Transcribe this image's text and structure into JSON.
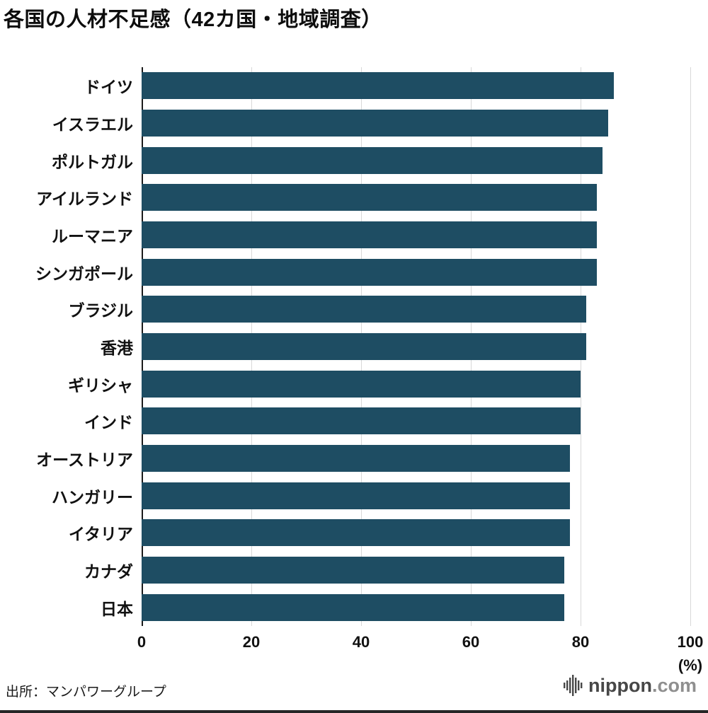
{
  "chart_data": {
    "type": "bar",
    "orientation": "horizontal",
    "title": "各国の人材不足感（42カ国・地域調査）",
    "categories": [
      "ドイツ",
      "イスラエル",
      "ポルトガル",
      "アイルランド",
      "ルーマニア",
      "シンガポール",
      "ブラジル",
      "香港",
      "ギリシャ",
      "インド",
      "オーストリア",
      "ハンガリー",
      "イタリア",
      "カナダ",
      "日本"
    ],
    "values": [
      86,
      85,
      84,
      83,
      83,
      83,
      81,
      81,
      80,
      80,
      78,
      78,
      78,
      77,
      77
    ],
    "xlabel": "",
    "ylabel": "",
    "xlim": [
      0,
      100
    ],
    "ticks": [
      0,
      20,
      40,
      60,
      80,
      100
    ],
    "unit_label": "(%)",
    "bar_color": "#1e4d63",
    "grid": true,
    "legend": false
  },
  "footer": {
    "source": "出所：マンパワーグループ",
    "logo_primary": "nippon",
    "logo_secondary": ".com"
  }
}
